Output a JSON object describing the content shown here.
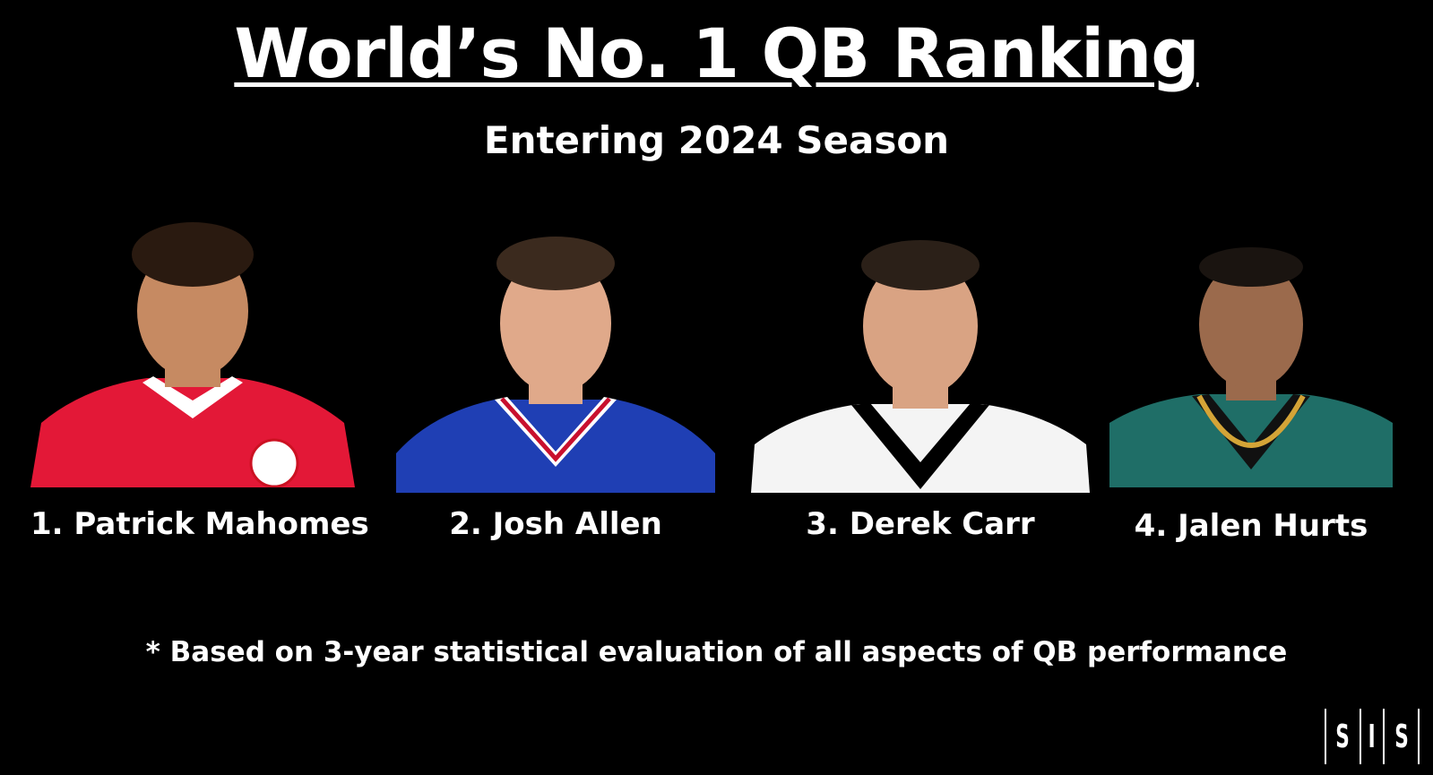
{
  "title": "World’s No. 1 QB Ranking",
  "subtitle": "Entering 2024 Season",
  "players": [
    {
      "label": "1. Patrick Mahomes",
      "jersey_color": "#e31837",
      "skin_color": "#c68a62",
      "hair_color": "#2a1a10"
    },
    {
      "label": "2. Josh Allen",
      "jersey_color": "#1f3fb4",
      "skin_color": "#e0a98a",
      "hair_color": "#3b2a1e"
    },
    {
      "label": "3. Derek Carr",
      "jersey_color": "#f4f4f4",
      "skin_color": "#d9a383",
      "hair_color": "#2b2018"
    },
    {
      "label": "4. Jalen Hurts",
      "jersey_color": "#1f6e67",
      "skin_color": "#9b6a4c",
      "hair_color": "#1a1410"
    }
  ],
  "footnote": "* Based on 3-year statistical evaluation of all aspects of QB performance",
  "logo": {
    "letters": [
      "S",
      "I",
      "S"
    ],
    "color": "#ffffff"
  }
}
